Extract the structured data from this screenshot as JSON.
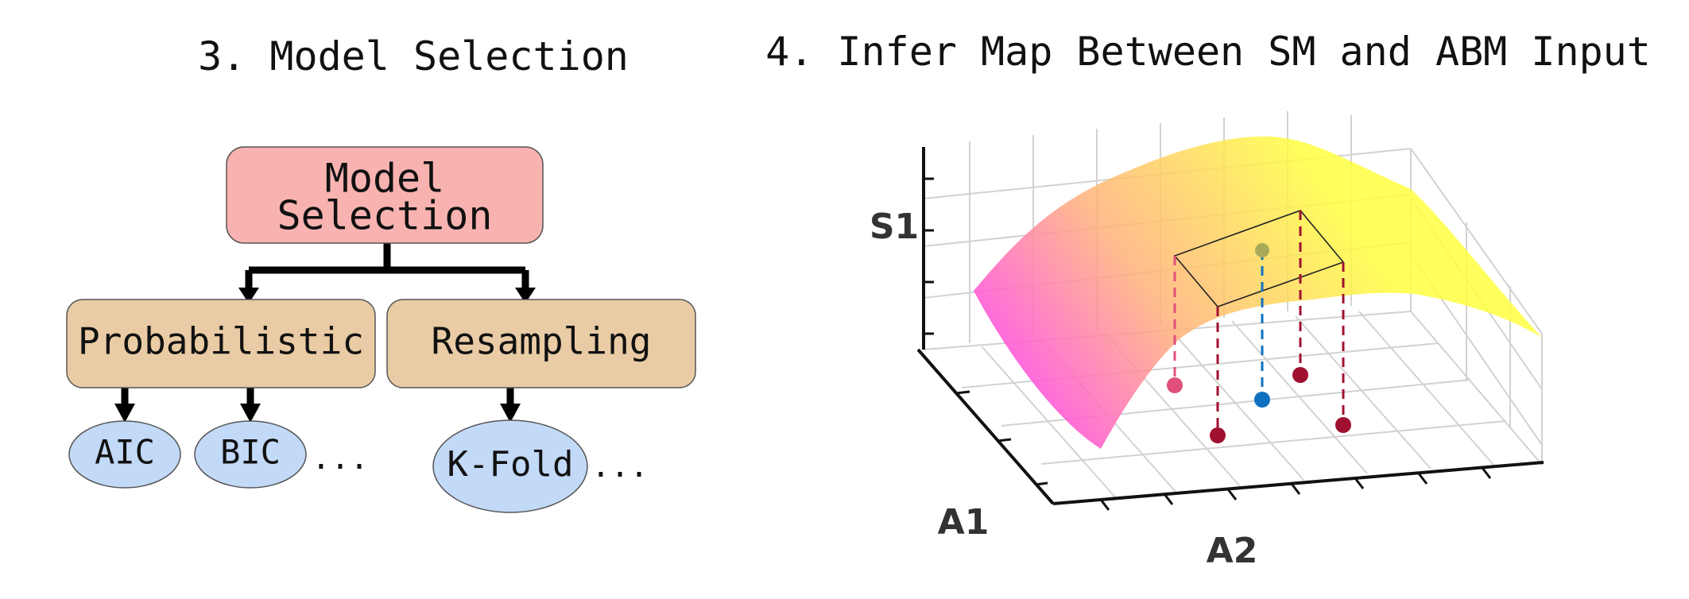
{
  "panel3": {
    "title": "3. Model Selection",
    "root_line1": "Model",
    "root_line2": "Selection",
    "probabilistic": "Probabilistic",
    "resampling": "Resampling",
    "aic": "AIC",
    "bic": "BIC",
    "kfold": "K-Fold",
    "ellipsis": "...",
    "colors": {
      "root": "#f8b3b0",
      "mid": "#e9cba5",
      "leaf": "#c2d9f7"
    }
  },
  "panel4": {
    "title": "4. Infer Map Between SM and ABM Input",
    "ylabel": "S1",
    "xlabel1": "A1",
    "xlabel2": "A2",
    "colors": {
      "surface_low": "#ff33ff",
      "surface_high": "#ffff40",
      "point_red": "#a01030",
      "point_blue": "#1070c0",
      "point_pink": "#e0507a",
      "point_olive": "#a8aa58"
    }
  }
}
